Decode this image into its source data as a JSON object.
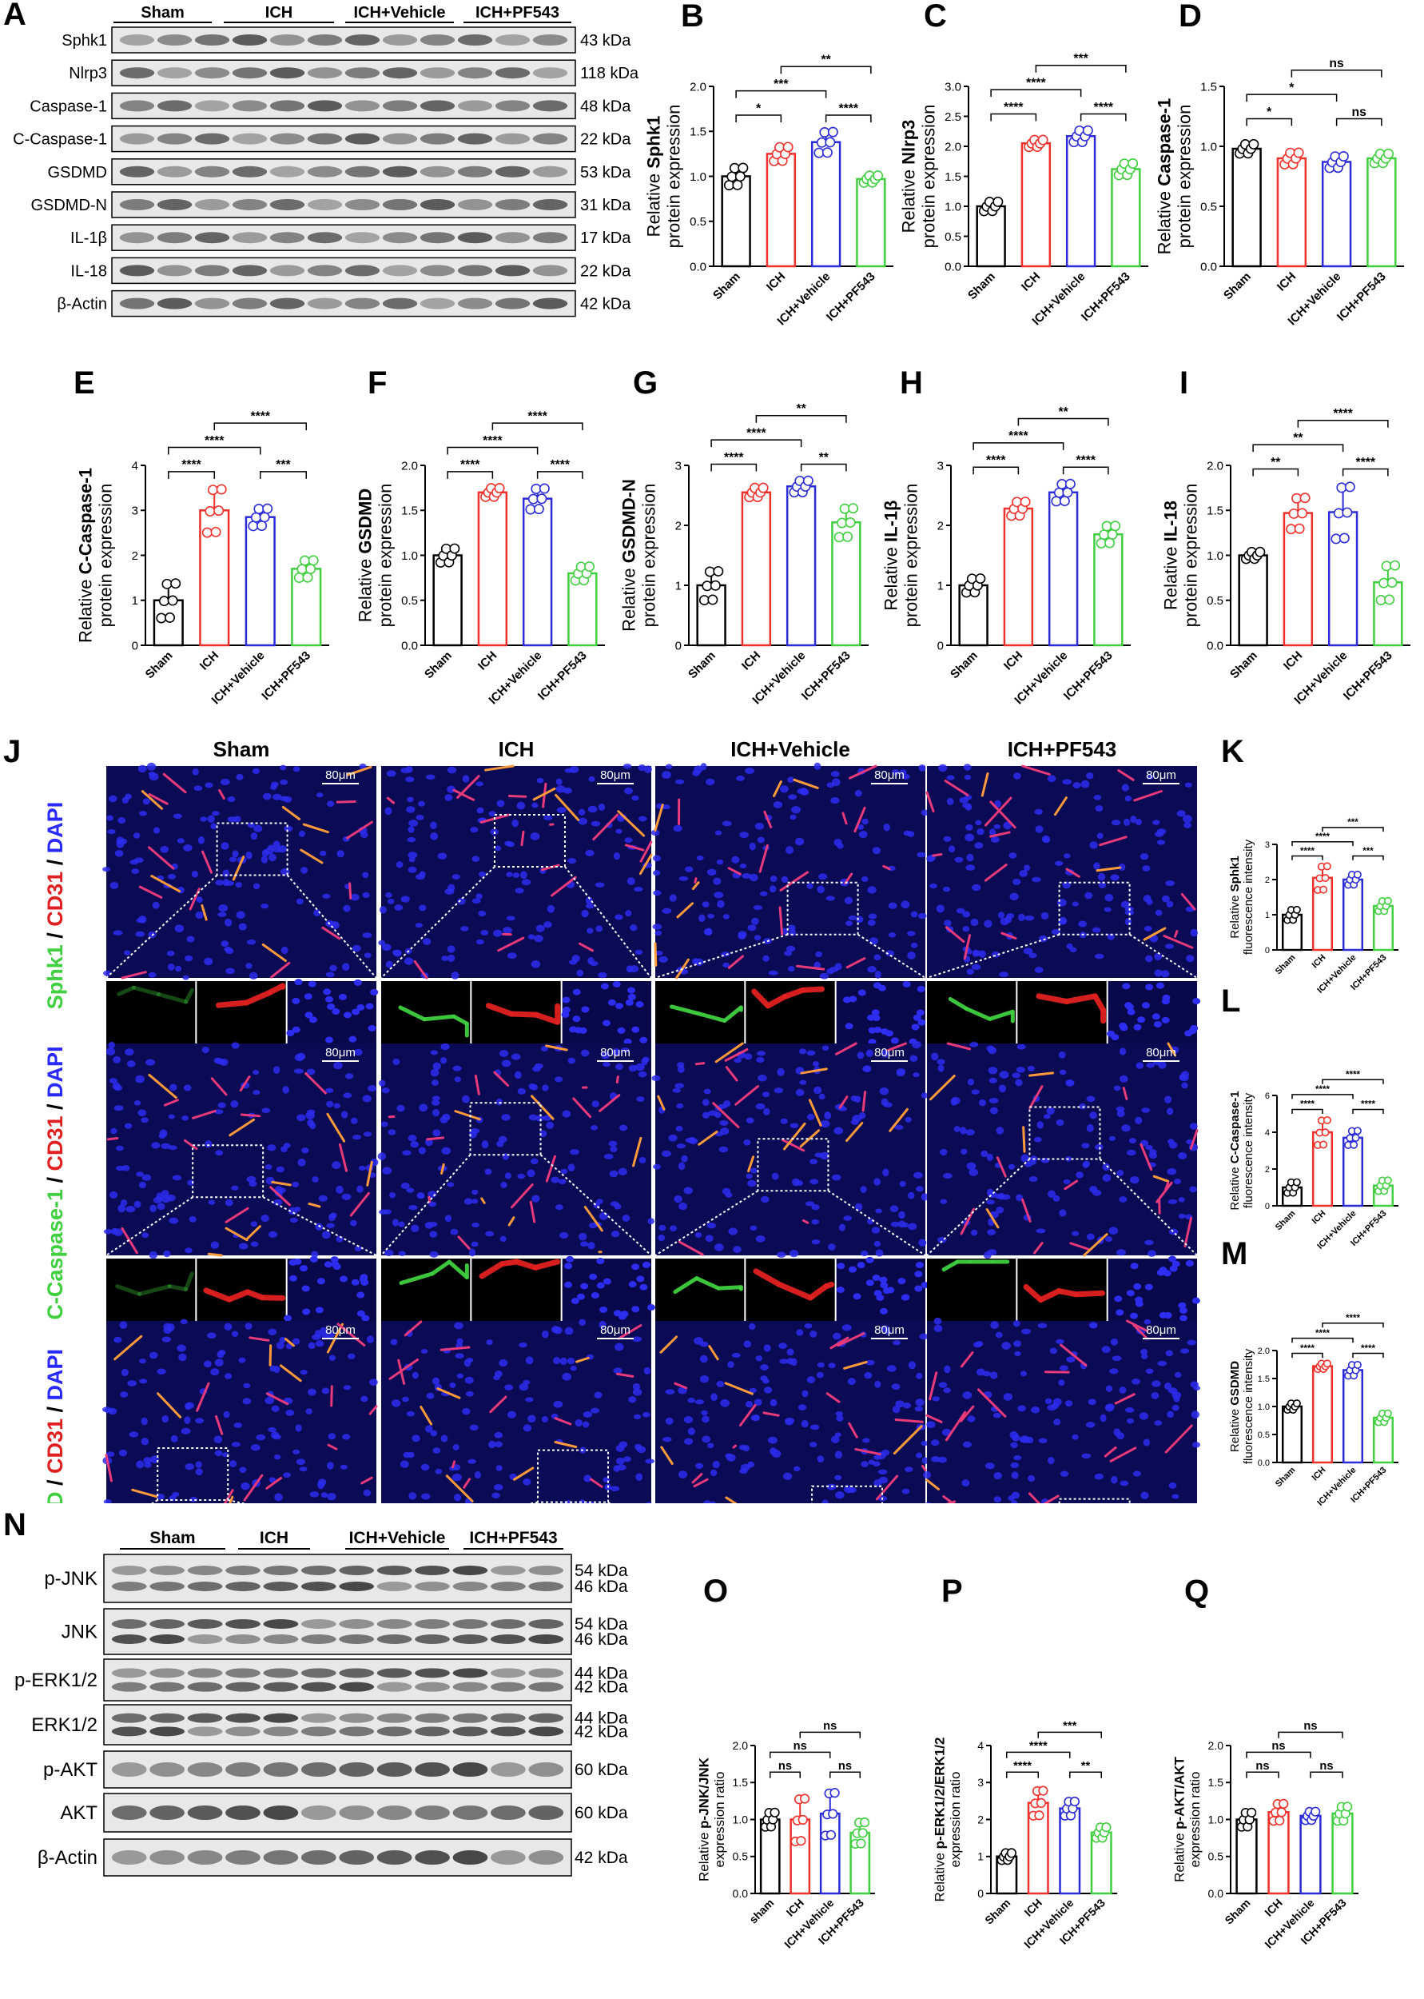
{
  "panel_letters": [
    "A",
    "B",
    "C",
    "D",
    "E",
    "F",
    "G",
    "H",
    "I",
    "J",
    "K",
    "L",
    "M",
    "N",
    "O",
    "P",
    "Q"
  ],
  "groups": [
    "Sham",
    "ICH",
    "ICH+Vehicle",
    "ICH+PF543"
  ],
  "groups_lower": [
    "sham",
    "ICH",
    "ICH+Vehicle",
    "ICH+PF543"
  ],
  "group_colors": [
    "#000000",
    "#f0302a",
    "#2b2bd9",
    "#3fcf3f"
  ],
  "blotA": {
    "header": [
      "Sham",
      "ICH",
      "ICH+Vehicle",
      "ICH+PF543"
    ],
    "rows": [
      {
        "label": "Sphk1",
        "kda": "43 kDa"
      },
      {
        "label": "Nlrp3",
        "kda": "118 kDa"
      },
      {
        "label": "Caspase-1",
        "kda": "48 kDa"
      },
      {
        "label": "C-Caspase-1",
        "kda": "22 kDa"
      },
      {
        "label": "GSDMD",
        "kda": "53 kDa"
      },
      {
        "label": "GSDMD-N",
        "kda": "31 kDa"
      },
      {
        "label": "IL-1β",
        "kda": "17 kDa"
      },
      {
        "label": "IL-18",
        "kda": "22 kDa"
      },
      {
        "label": "β-Actin",
        "kda": "42 kDa"
      }
    ]
  },
  "blotN": {
    "header": [
      "Sham",
      "ICH",
      "ICH+Vehicle",
      "ICH+PF543"
    ],
    "rows": [
      {
        "label": "p-JNK",
        "kda": [
          "54 kDa",
          "46 kDa"
        ]
      },
      {
        "label": "JNK",
        "kda": [
          "54 kDa",
          "46 kDa"
        ]
      },
      {
        "label": "p-ERK1/2",
        "kda": [
          "44 kDa",
          "42 kDa"
        ]
      },
      {
        "label": "ERK1/2",
        "kda": [
          "44 kDa",
          "42 kDa"
        ]
      },
      {
        "label": "p-AKT",
        "kda": [
          "60 kDa"
        ]
      },
      {
        "label": "AKT",
        "kda": [
          "60 kDa"
        ]
      },
      {
        "label": "β-Actin",
        "kda": [
          "42 kDa"
        ]
      }
    ]
  },
  "microscopy": {
    "columns": [
      "Sham",
      "ICH",
      "ICH+Vehicle",
      "ICH+PF543"
    ],
    "scale_bar": "80μm",
    "row_labels": [
      {
        "marker": "Sphk1",
        "rest": [
          " / ",
          "CD31",
          " / ",
          "DAPI"
        ]
      },
      {
        "marker": "C-Caspase-1",
        "rest": [
          " / ",
          "CD31",
          " / ",
          "DAPI"
        ]
      },
      {
        "marker": "GSDMD",
        "rest": [
          " / ",
          "CD31",
          " / ",
          "DAPI"
        ]
      }
    ]
  },
  "chart_data": [
    {
      "panel": "B",
      "type": "bar",
      "ylabel_prefix": "Relative ",
      "ylabel_bold": "Sphk1",
      "ylabel2": "protein expression",
      "ylim": [
        0,
        2.0
      ],
      "yticks": [
        "0.0",
        "0.5",
        "1.0",
        "1.5",
        "2.0"
      ],
      "categories": [
        "Sham",
        "ICH",
        "ICH+Vehicle",
        "ICH+PF543"
      ],
      "values": [
        1.0,
        1.25,
        1.38,
        0.97
      ],
      "errors": [
        0.1,
        0.08,
        0.12,
        0.04
      ],
      "comparisons": [
        {
          "from": 0,
          "to": 1,
          "label": "*"
        },
        {
          "from": 2,
          "to": 3,
          "label": "****"
        },
        {
          "from": 0,
          "to": 2,
          "label": "***"
        },
        {
          "from": 1,
          "to": 3,
          "label": "**"
        }
      ]
    },
    {
      "panel": "C",
      "type": "bar",
      "ylabel_prefix": "Relative ",
      "ylabel_bold": "Nlrp3",
      "ylabel2": "protein expression",
      "ylim": [
        0,
        3.0
      ],
      "yticks": [
        "0.0",
        "0.5",
        "1.0",
        "1.5",
        "2.0",
        "2.5",
        "3.0"
      ],
      "categories": [
        "Sham",
        "ICH",
        "ICH+Vehicle",
        "ICH+PF543"
      ],
      "values": [
        1.0,
        2.05,
        2.17,
        1.62
      ],
      "errors": [
        0.08,
        0.06,
        0.1,
        0.1
      ],
      "comparisons": [
        {
          "from": 0,
          "to": 1,
          "label": "****"
        },
        {
          "from": 2,
          "to": 3,
          "label": "****"
        },
        {
          "from": 0,
          "to": 2,
          "label": "****"
        },
        {
          "from": 1,
          "to": 3,
          "label": "***"
        }
      ]
    },
    {
      "panel": "D",
      "type": "bar",
      "ylabel_prefix": "Relative ",
      "ylabel_bold": "Caspase-1",
      "ylabel2": "protein expression",
      "ylim": [
        0,
        1.5
      ],
      "yticks": [
        "0.0",
        "0.5",
        "1.0",
        "1.5"
      ],
      "categories": [
        "Sham",
        "ICH",
        "ICH+Vehicle",
        "ICH+PF543"
      ],
      "values": [
        0.98,
        0.9,
        0.87,
        0.9
      ],
      "errors": [
        0.04,
        0.05,
        0.05,
        0.04
      ],
      "comparisons": [
        {
          "from": 0,
          "to": 1,
          "label": "*"
        },
        {
          "from": 2,
          "to": 3,
          "label": "ns"
        },
        {
          "from": 0,
          "to": 2,
          "label": "*"
        },
        {
          "from": 1,
          "to": 3,
          "label": "ns"
        }
      ]
    },
    {
      "panel": "E",
      "type": "bar",
      "ylabel_prefix": "Relative ",
      "ylabel_bold": "C-Caspase-1",
      "ylabel2": "protein expression",
      "ylim": [
        0,
        4
      ],
      "yticks": [
        "0",
        "1",
        "2",
        "3",
        "4"
      ],
      "categories": [
        "Sham",
        "ICH",
        "ICH+Vehicle",
        "ICH+PF543"
      ],
      "values": [
        1.0,
        3.0,
        2.85,
        1.7
      ],
      "errors": [
        0.4,
        0.5,
        0.2,
        0.2
      ],
      "comparisons": [
        {
          "from": 0,
          "to": 1,
          "label": "****"
        },
        {
          "from": 2,
          "to": 3,
          "label": "***"
        },
        {
          "from": 0,
          "to": 2,
          "label": "****"
        },
        {
          "from": 1,
          "to": 3,
          "label": "****"
        }
      ]
    },
    {
      "panel": "F",
      "type": "bar",
      "ylabel_prefix": "Relative ",
      "ylabel_bold": "GSDMD",
      "ylabel2": "protein expression",
      "ylim": [
        0,
        2.0
      ],
      "yticks": [
        "0.0",
        "0.5",
        "1.0",
        "1.5",
        "2.0"
      ],
      "categories": [
        "Sham",
        "ICH",
        "ICH+Vehicle",
        "ICH+PF543"
      ],
      "values": [
        1.0,
        1.7,
        1.63,
        0.8
      ],
      "errors": [
        0.08,
        0.05,
        0.12,
        0.08
      ],
      "comparisons": [
        {
          "from": 0,
          "to": 1,
          "label": "****"
        },
        {
          "from": 2,
          "to": 3,
          "label": "****"
        },
        {
          "from": 0,
          "to": 2,
          "label": "****"
        },
        {
          "from": 1,
          "to": 3,
          "label": "****"
        }
      ]
    },
    {
      "panel": "G",
      "type": "bar",
      "ylabel_prefix": "Relative ",
      "ylabel_bold": "GSDMD-N",
      "ylabel2": "protein expression",
      "ylim": [
        0,
        3
      ],
      "yticks": [
        "0",
        "1",
        "2",
        "3"
      ],
      "categories": [
        "Sham",
        "ICH",
        "ICH+Vehicle",
        "ICH+PF543"
      ],
      "values": [
        1.0,
        2.55,
        2.65,
        2.05
      ],
      "errors": [
        0.25,
        0.08,
        0.1,
        0.25
      ],
      "comparisons": [
        {
          "from": 0,
          "to": 1,
          "label": "****"
        },
        {
          "from": 2,
          "to": 3,
          "label": "**"
        },
        {
          "from": 0,
          "to": 2,
          "label": "****"
        },
        {
          "from": 1,
          "to": 3,
          "label": "**"
        }
      ]
    },
    {
      "panel": "H",
      "type": "bar",
      "ylabel_prefix": "Relative ",
      "ylabel_bold": "IL-1β",
      "ylabel2": "protein expression",
      "ylim": [
        0,
        3
      ],
      "yticks": [
        "0",
        "1",
        "2",
        "3"
      ],
      "categories": [
        "Sham",
        "ICH",
        "ICH+Vehicle",
        "ICH+PF543"
      ],
      "values": [
        1.0,
        2.28,
        2.55,
        1.85
      ],
      "errors": [
        0.12,
        0.12,
        0.15,
        0.15
      ],
      "comparisons": [
        {
          "from": 0,
          "to": 1,
          "label": "****"
        },
        {
          "from": 2,
          "to": 3,
          "label": "****"
        },
        {
          "from": 0,
          "to": 2,
          "label": "****"
        },
        {
          "from": 1,
          "to": 3,
          "label": "**"
        }
      ]
    },
    {
      "panel": "I",
      "type": "bar",
      "ylabel_prefix": "Relative ",
      "ylabel_bold": "IL-18",
      "ylabel2": "protein expression",
      "ylim": [
        0,
        2.0
      ],
      "yticks": [
        "0.0",
        "0.5",
        "1.0",
        "1.5",
        "2.0"
      ],
      "categories": [
        "Sham",
        "ICH",
        "ICH+Vehicle",
        "ICH+PF543"
      ],
      "values": [
        1.0,
        1.47,
        1.48,
        0.7
      ],
      "errors": [
        0.04,
        0.18,
        0.3,
        0.2
      ],
      "comparisons": [
        {
          "from": 0,
          "to": 1,
          "label": "**"
        },
        {
          "from": 2,
          "to": 3,
          "label": "****"
        },
        {
          "from": 0,
          "to": 2,
          "label": "**"
        },
        {
          "from": 1,
          "to": 3,
          "label": "****"
        }
      ]
    },
    {
      "panel": "K",
      "type": "bar",
      "ylabel_prefix": "Relative ",
      "ylabel_bold": "Sphk1",
      "ylabel2": "fluorescence intensity",
      "ylim": [
        0,
        3
      ],
      "yticks": [
        "0",
        "1",
        "2",
        "3"
      ],
      "categories": [
        "Sham",
        "ICH",
        "ICH+Vehicle",
        "ICH+PF543"
      ],
      "values": [
        1.0,
        2.05,
        2.0,
        1.25
      ],
      "errors": [
        0.15,
        0.35,
        0.15,
        0.15
      ],
      "comparisons": [
        {
          "from": 0,
          "to": 1,
          "label": "****"
        },
        {
          "from": 2,
          "to": 3,
          "label": "***"
        },
        {
          "from": 0,
          "to": 2,
          "label": "****"
        },
        {
          "from": 1,
          "to": 3,
          "label": "***"
        }
      ]
    },
    {
      "panel": "L",
      "type": "bar",
      "ylabel_prefix": "Relative ",
      "ylabel_bold": "C-Caspase-1",
      "ylabel2": "fluorescence intensity",
      "ylim": [
        0,
        6
      ],
      "yticks": [
        "0",
        "2",
        "4",
        "6"
      ],
      "categories": [
        "Sham",
        "ICH",
        "ICH+Vehicle",
        "ICH+PF543"
      ],
      "values": [
        1.0,
        4.0,
        3.7,
        1.1
      ],
      "errors": [
        0.3,
        0.7,
        0.4,
        0.3
      ],
      "comparisons": [
        {
          "from": 0,
          "to": 1,
          "label": "****"
        },
        {
          "from": 2,
          "to": 3,
          "label": "****"
        },
        {
          "from": 0,
          "to": 2,
          "label": "****"
        },
        {
          "from": 1,
          "to": 3,
          "label": "****"
        }
      ]
    },
    {
      "panel": "M",
      "type": "bar",
      "ylabel_prefix": "Relative ",
      "ylabel_bold": "GSDMD",
      "ylabel2": "fluorescence intensity",
      "ylim": [
        0,
        2.0
      ],
      "yticks": [
        "0.0",
        "0.5",
        "1.0",
        "1.5",
        "2.0"
      ],
      "categories": [
        "Sham",
        "ICH",
        "ICH+Vehicle",
        "ICH+PF543"
      ],
      "values": [
        1.0,
        1.72,
        1.65,
        0.8
      ],
      "errors": [
        0.06,
        0.05,
        0.1,
        0.08
      ],
      "comparisons": [
        {
          "from": 0,
          "to": 1,
          "label": "****"
        },
        {
          "from": 2,
          "to": 3,
          "label": "****"
        },
        {
          "from": 0,
          "to": 2,
          "label": "****"
        },
        {
          "from": 1,
          "to": 3,
          "label": "****"
        }
      ]
    },
    {
      "panel": "O",
      "type": "bar",
      "ylabel_prefix": "Relative ",
      "ylabel_bold": "p-JNK/JNK",
      "ylabel2": "expression ratio",
      "ylim": [
        0,
        2.0
      ],
      "yticks": [
        "0.0",
        "0.5",
        "1.0",
        "1.5",
        "2.0"
      ],
      "categories": [
        "sham",
        "ICH",
        "ICH+Vehicle",
        "ICH+PF543"
      ],
      "values": [
        1.0,
        1.0,
        1.08,
        0.82
      ],
      "errors": [
        0.1,
        0.3,
        0.3,
        0.15
      ],
      "comparisons": [
        {
          "from": 0,
          "to": 1,
          "label": "ns"
        },
        {
          "from": 2,
          "to": 3,
          "label": "ns"
        },
        {
          "from": 0,
          "to": 2,
          "label": "ns"
        },
        {
          "from": 1,
          "to": 3,
          "label": "ns"
        }
      ]
    },
    {
      "panel": "P",
      "type": "bar",
      "ylabel_prefix": "Relative ",
      "ylabel_bold": "p-ERK1/2/ERK1/2",
      "ylabel2": "expression ratio",
      "ylim": [
        0,
        4
      ],
      "yticks": [
        "0",
        "1",
        "2",
        "3",
        "4"
      ],
      "categories": [
        "Sham",
        "ICH",
        "ICH+Vehicle",
        "ICH+PF543"
      ],
      "values": [
        1.0,
        2.45,
        2.3,
        1.65
      ],
      "errors": [
        0.1,
        0.35,
        0.2,
        0.15
      ],
      "comparisons": [
        {
          "from": 0,
          "to": 1,
          "label": "****"
        },
        {
          "from": 2,
          "to": 3,
          "label": "**"
        },
        {
          "from": 0,
          "to": 2,
          "label": "****"
        },
        {
          "from": 1,
          "to": 3,
          "label": "***"
        }
      ]
    },
    {
      "panel": "Q",
      "type": "bar",
      "ylabel_prefix": "Relative ",
      "ylabel_bold": "p-AKT/AKT",
      "ylabel2": "expression ratio",
      "ylim": [
        0,
        2.0
      ],
      "yticks": [
        "0.0",
        "0.5",
        "1.0",
        "1.5",
        "2.0"
      ],
      "categories": [
        "Sham",
        "ICH",
        "ICH+Vehicle",
        "ICH+PF543"
      ],
      "values": [
        1.0,
        1.1,
        1.05,
        1.08
      ],
      "errors": [
        0.1,
        0.12,
        0.06,
        0.1
      ],
      "comparisons": [
        {
          "from": 0,
          "to": 1,
          "label": "ns"
        },
        {
          "from": 2,
          "to": 3,
          "label": "ns"
        },
        {
          "from": 0,
          "to": 2,
          "label": "ns"
        },
        {
          "from": 1,
          "to": 3,
          "label": "ns"
        }
      ]
    }
  ]
}
